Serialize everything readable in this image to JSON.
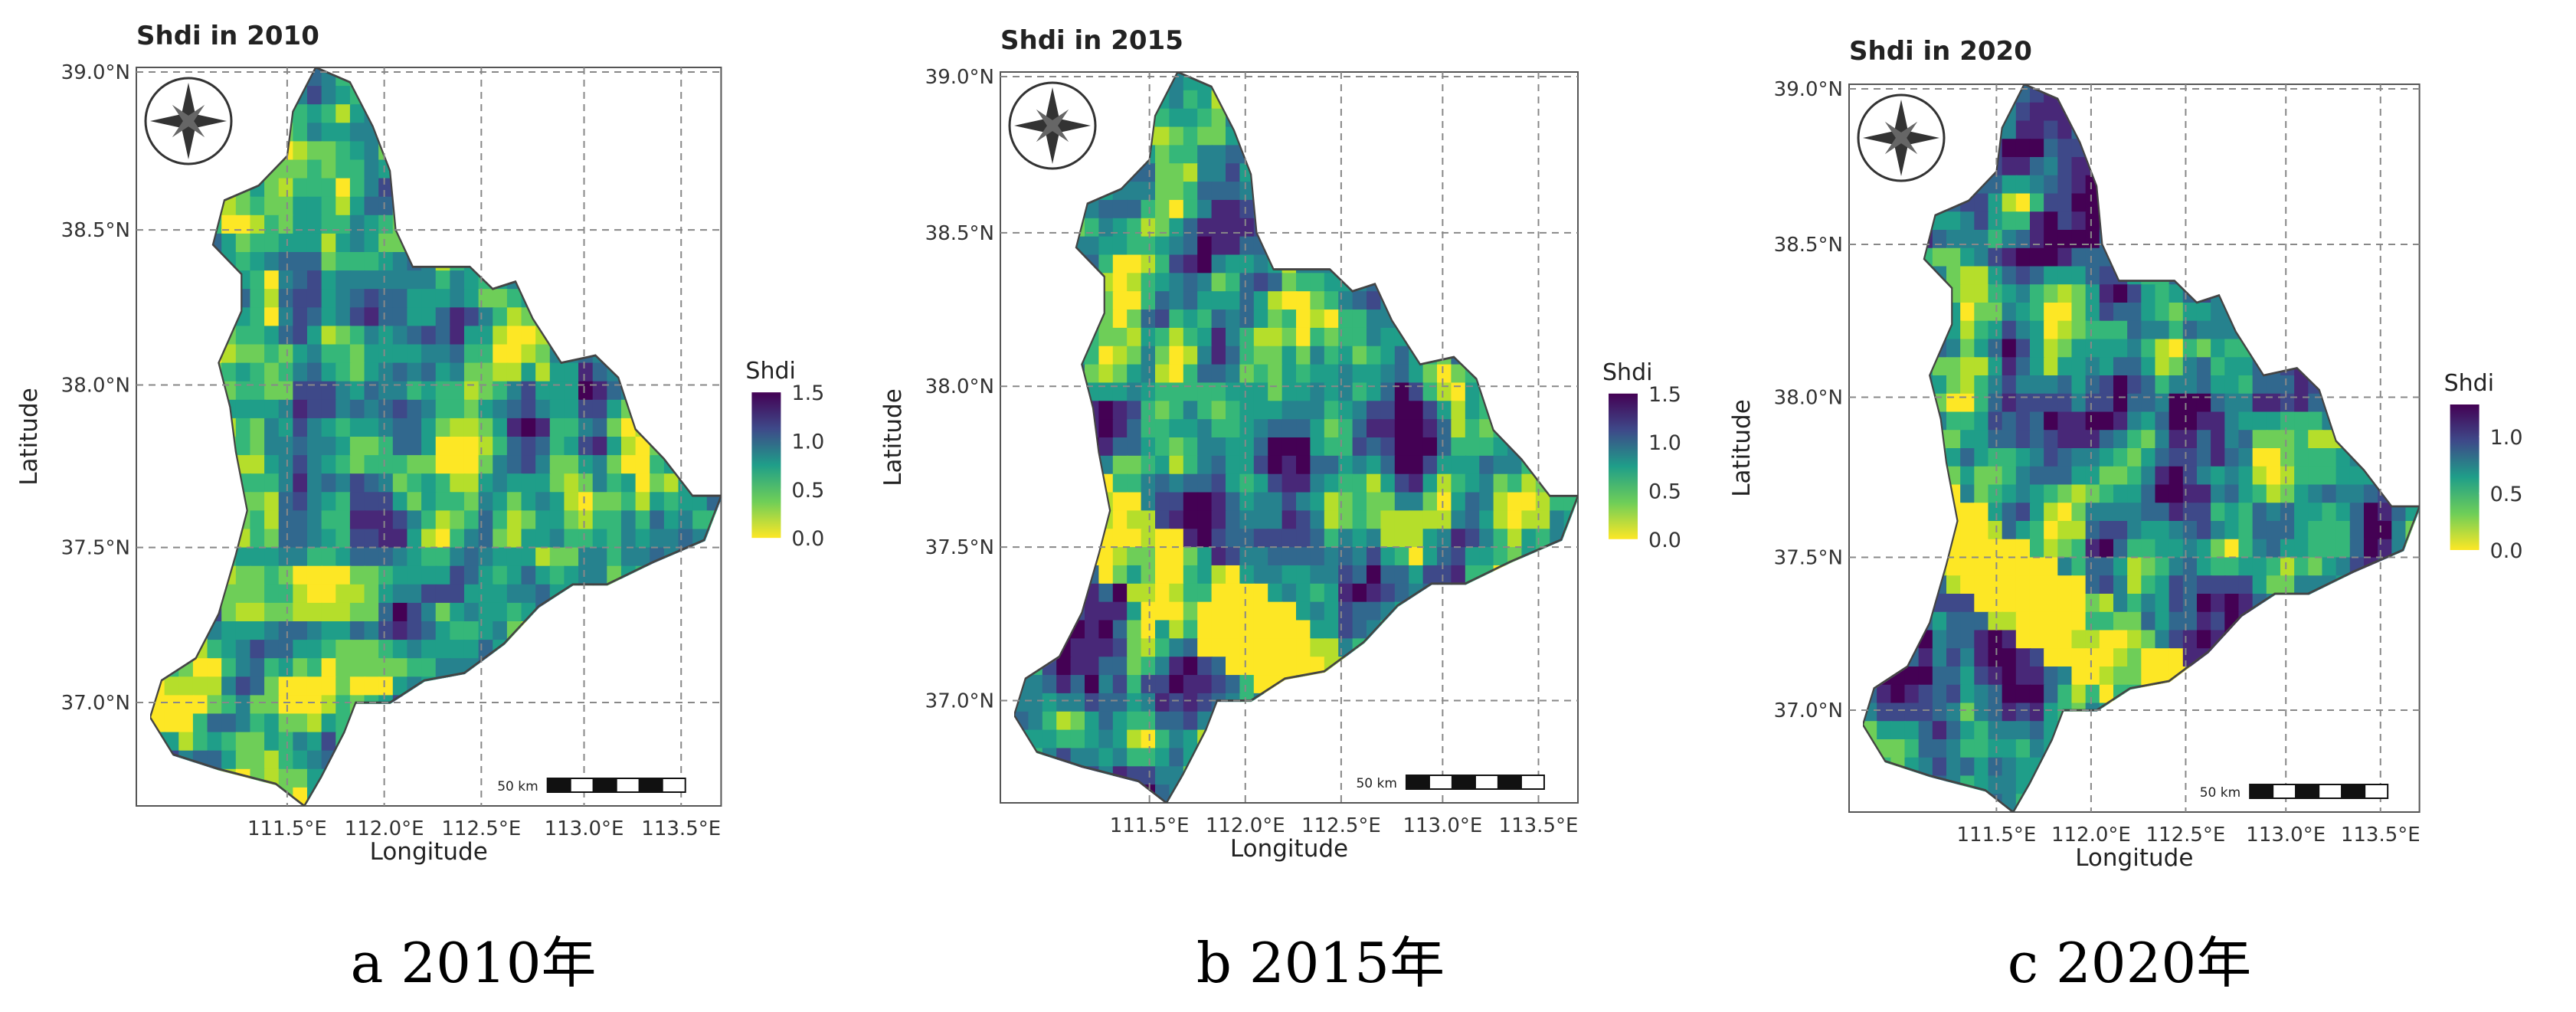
{
  "panels": [
    {
      "title": "Shdi in 2010",
      "caption": "a 2010年",
      "legend": {
        "title": "Shdi",
        "ticks": [
          "1.5",
          "1.0",
          "0.5",
          "0.0"
        ]
      },
      "seed": 11
    },
    {
      "title": "Shdi in 2015",
      "caption": "b 2015年",
      "legend": {
        "title": "Shdi",
        "ticks": [
          "1.5",
          "1.0",
          "0.5",
          "0.0"
        ]
      },
      "seed": 37
    },
    {
      "title": "Shdi in 2020",
      "caption": "c 2020年",
      "legend": {
        "title": "Shdi",
        "ticks": [
          "1.0",
          "0.5",
          "0.0"
        ]
      },
      "seed": 73
    }
  ],
  "axes": {
    "xlabel": "Longitude",
    "ylabel": "Latitude",
    "xticks": [
      "111.5°E",
      "112.0°E",
      "112.5°E",
      "113.0°E",
      "113.5°E"
    ],
    "yticks": [
      "39.0°N",
      "38.5°N",
      "38.0°N",
      "37.5°N",
      "37.0°N"
    ]
  },
  "scalebar_label": "50 km",
  "compass": "compass-rose-icon",
  "colors": {
    "viridis": [
      "#fde725",
      "#b5de2b",
      "#6ece58",
      "#35b779",
      "#1f9e89",
      "#26828e",
      "#31688e",
      "#3e4989",
      "#482878",
      "#440154"
    ],
    "frame": "#555555",
    "grid": "#888888"
  }
}
